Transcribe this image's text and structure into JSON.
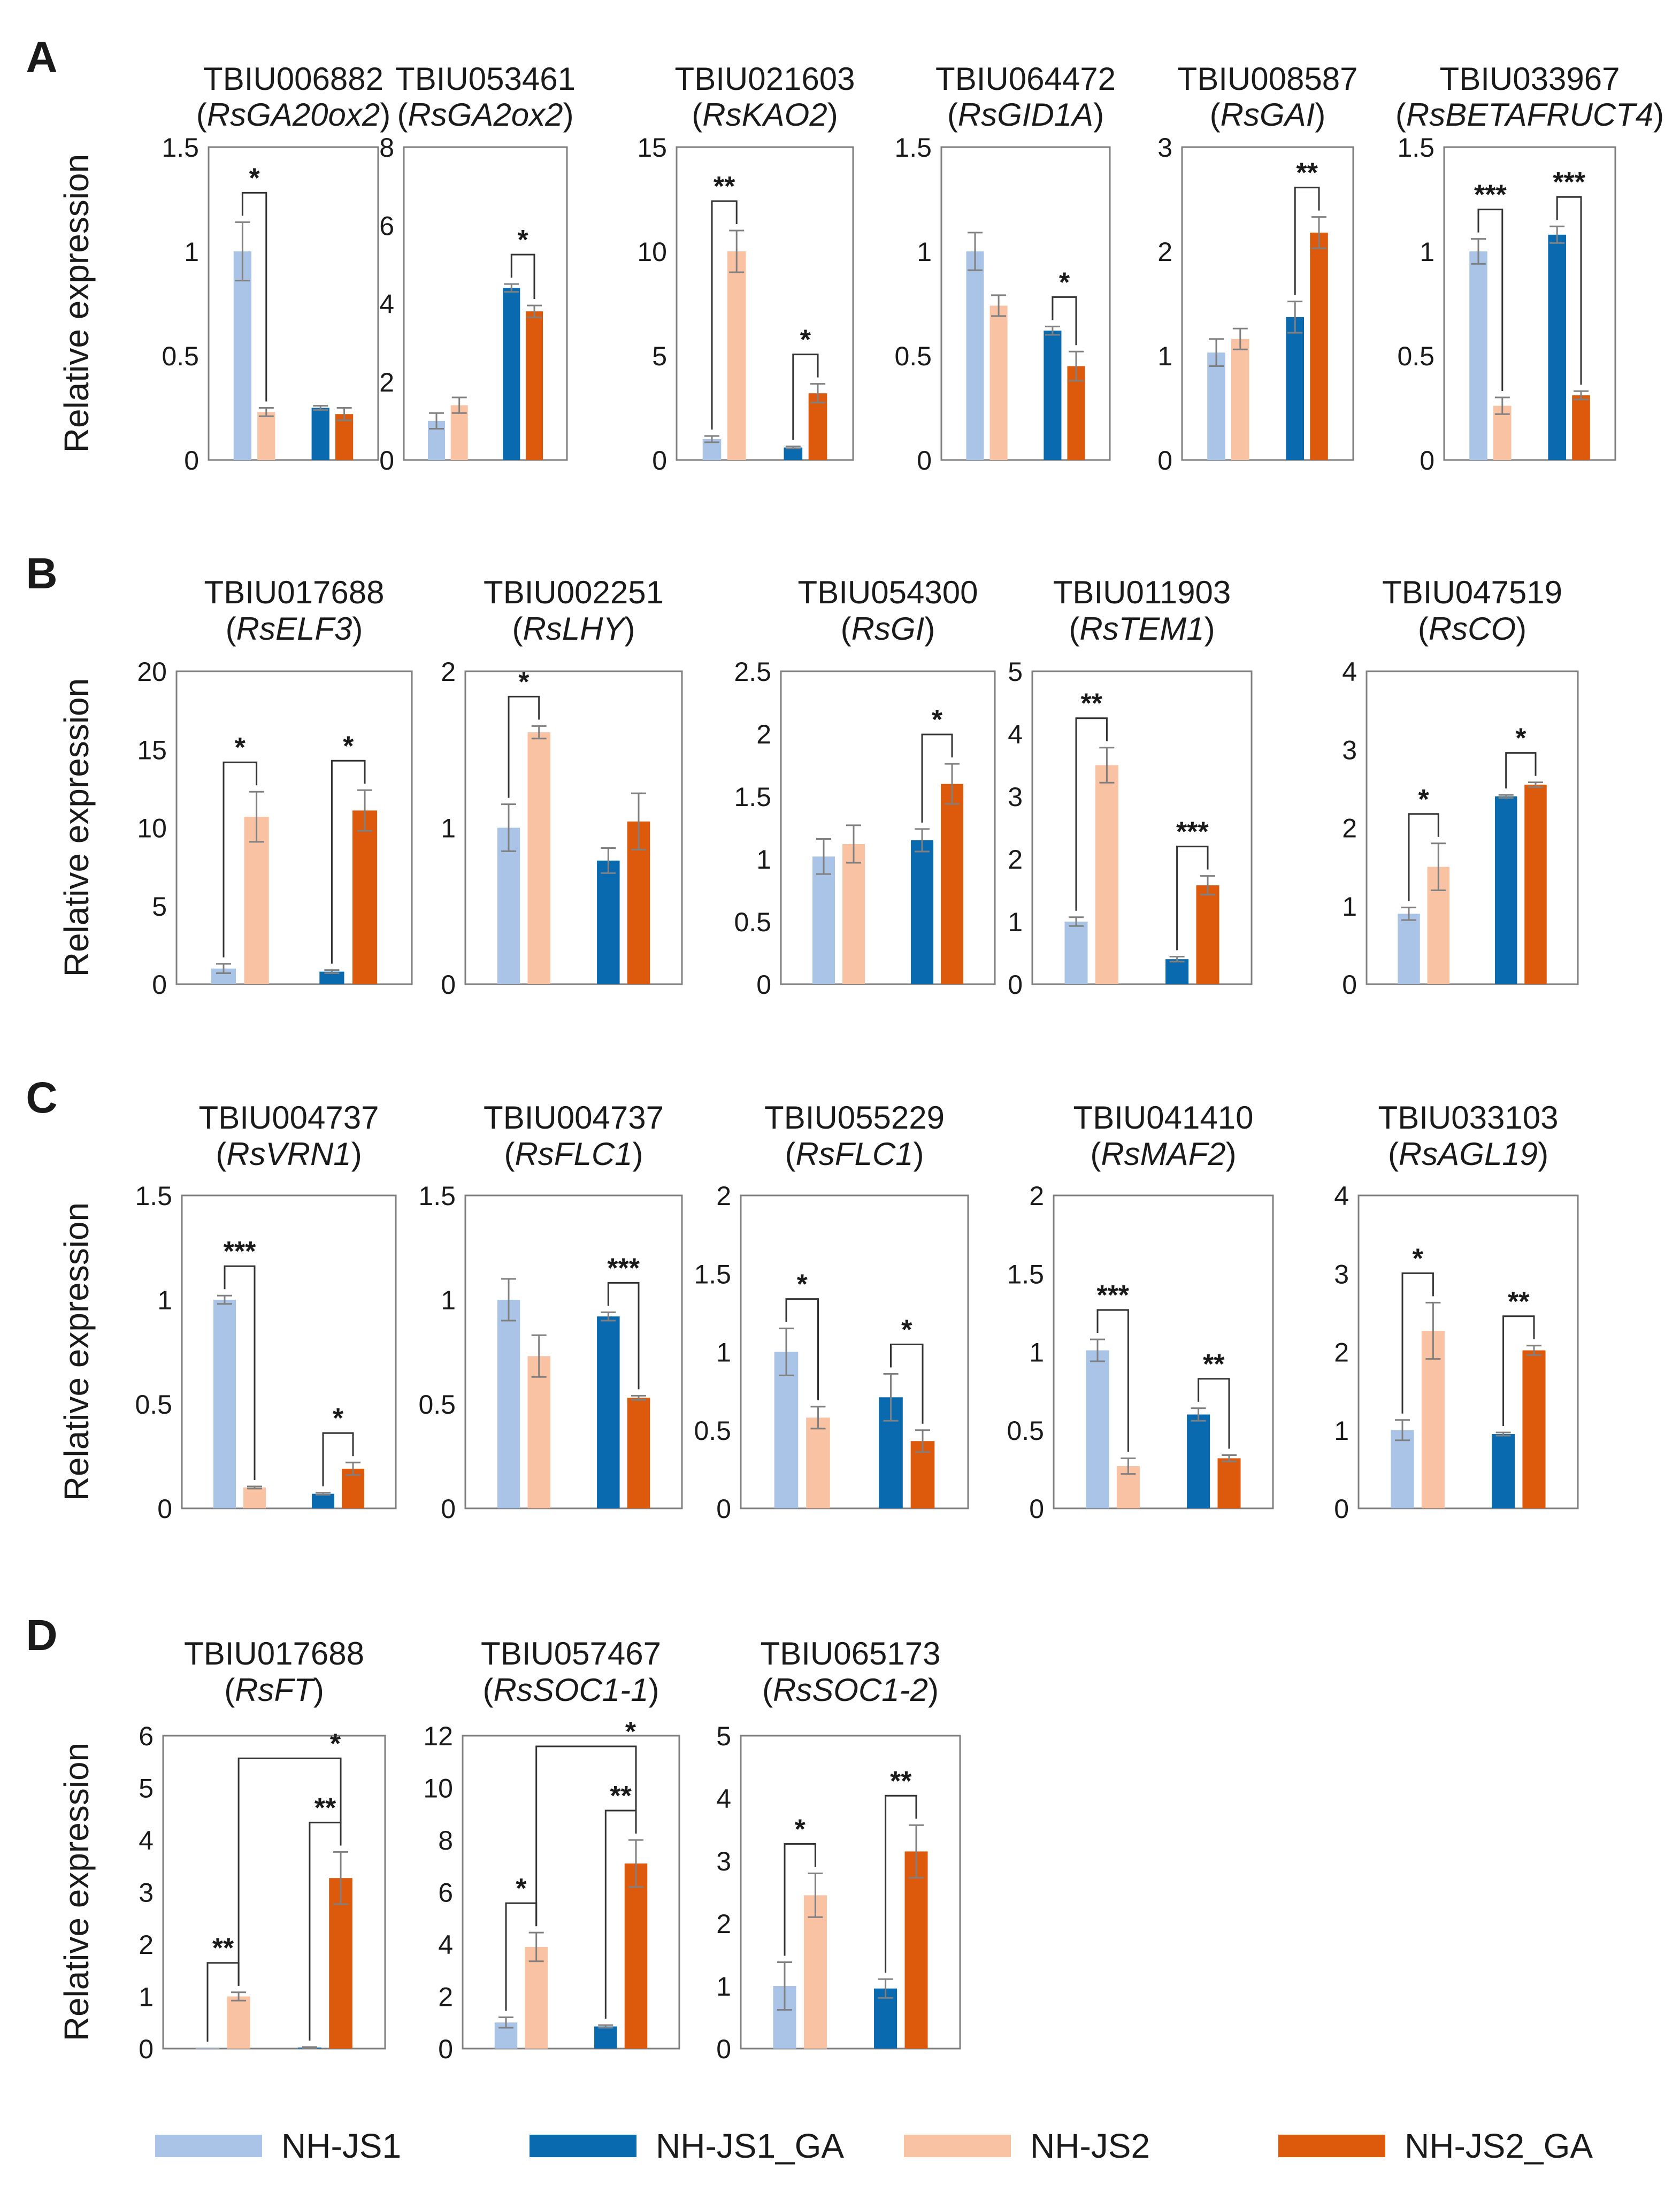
{
  "figure": {
    "y_axis_label": "Relative expression",
    "legend": [
      {
        "label": "NH-JS1",
        "color": "#a9c4e6"
      },
      {
        "label": "NH-JS1_GA",
        "color": "#0a6ab0"
      },
      {
        "label": "NH-JS2",
        "color": "#f9c3a3"
      },
      {
        "label": "NH-JS2_GA",
        "color": "#dd5a0c"
      }
    ],
    "panels": [
      {
        "letter": "A"
      },
      {
        "letter": "B"
      },
      {
        "letter": "C"
      },
      {
        "letter": "D"
      }
    ]
  },
  "chart_data": [
    {
      "panel": "A",
      "type": "bar",
      "title": "TBIU006882",
      "subtitle": "RsGA20ox2",
      "ylim": [
        0,
        1.5
      ],
      "yticks": [
        "0",
        "0.5",
        "1",
        "1.5"
      ],
      "series": [
        {
          "name": "NH-JS1",
          "value": 1.0,
          "error": 0.14
        },
        {
          "name": "NH-JS2",
          "value": 0.23,
          "error": 0.02
        },
        {
          "name": "NH-JS1_GA",
          "value": 0.25,
          "error": 0.01
        },
        {
          "name": "NH-JS2_GA",
          "value": 0.22,
          "error": 0.03
        }
      ],
      "significance": [
        {
          "pair": [
            0,
            1
          ],
          "label": "*"
        }
      ]
    },
    {
      "panel": "A",
      "type": "bar",
      "title": "TBIU053461",
      "subtitle": "RsGA2ox2",
      "ylim": [
        0,
        8
      ],
      "yticks": [
        "0",
        "2",
        "4",
        "6",
        "8"
      ],
      "series": [
        {
          "name": "NH-JS1",
          "value": 1.0,
          "error": 0.2
        },
        {
          "name": "NH-JS2",
          "value": 1.4,
          "error": 0.2
        },
        {
          "name": "NH-JS1_GA",
          "value": 4.4,
          "error": 0.1
        },
        {
          "name": "NH-JS2_GA",
          "value": 3.8,
          "error": 0.15
        }
      ],
      "significance": [
        {
          "pair": [
            2,
            3
          ],
          "label": "*"
        }
      ]
    },
    {
      "panel": "A",
      "type": "bar",
      "title": "TBIU021603",
      "subtitle": "RsKAO2",
      "ylim": [
        0,
        15
      ],
      "yticks": [
        "0",
        "5",
        "10",
        "15"
      ],
      "series": [
        {
          "name": "NH-JS1",
          "value": 1.0,
          "error": 0.15
        },
        {
          "name": "NH-JS2",
          "value": 10.0,
          "error": 1.0
        },
        {
          "name": "NH-JS1_GA",
          "value": 0.6,
          "error": 0.05
        },
        {
          "name": "NH-JS2_GA",
          "value": 3.2,
          "error": 0.45
        }
      ],
      "significance": [
        {
          "pair": [
            0,
            1
          ],
          "label": "**"
        },
        {
          "pair": [
            2,
            3
          ],
          "label": "*"
        }
      ]
    },
    {
      "panel": "A",
      "type": "bar",
      "title": "TBIU064472",
      "subtitle": "RsGID1A",
      "ylim": [
        0,
        1.5
      ],
      "yticks": [
        "0",
        "0.5",
        "1",
        "1.5"
      ],
      "series": [
        {
          "name": "NH-JS1",
          "value": 1.0,
          "error": 0.09
        },
        {
          "name": "NH-JS2",
          "value": 0.74,
          "error": 0.05
        },
        {
          "name": "NH-JS1_GA",
          "value": 0.62,
          "error": 0.02
        },
        {
          "name": "NH-JS2_GA",
          "value": 0.45,
          "error": 0.07
        }
      ],
      "significance": [
        {
          "pair": [
            2,
            3
          ],
          "label": "*"
        }
      ]
    },
    {
      "panel": "A",
      "type": "bar",
      "title": "TBIU008587",
      "subtitle": "RsGAI",
      "ylim": [
        0,
        3
      ],
      "yticks": [
        "0",
        "1",
        "2",
        "3"
      ],
      "series": [
        {
          "name": "NH-JS1",
          "value": 1.03,
          "error": 0.13
        },
        {
          "name": "NH-JS2",
          "value": 1.16,
          "error": 0.1
        },
        {
          "name": "NH-JS1_GA",
          "value": 1.37,
          "error": 0.15
        },
        {
          "name": "NH-JS2_GA",
          "value": 2.18,
          "error": 0.15
        }
      ],
      "significance": [
        {
          "pair": [
            2,
            3
          ],
          "label": "**"
        }
      ]
    },
    {
      "panel": "A",
      "type": "bar",
      "title": "TBIU033967",
      "subtitle": "RsBETAFRUCT4",
      "ylim": [
        0,
        1.5
      ],
      "yticks": [
        "0",
        "0.5",
        "1",
        "1.5"
      ],
      "series": [
        {
          "name": "NH-JS1",
          "value": 1.0,
          "error": 0.06
        },
        {
          "name": "NH-JS2",
          "value": 0.26,
          "error": 0.04
        },
        {
          "name": "NH-JS1_GA",
          "value": 1.08,
          "error": 0.04
        },
        {
          "name": "NH-JS2_GA",
          "value": 0.31,
          "error": 0.02
        }
      ],
      "significance": [
        {
          "pair": [
            0,
            1
          ],
          "label": "***"
        },
        {
          "pair": [
            2,
            3
          ],
          "label": "***"
        }
      ]
    },
    {
      "panel": "B",
      "type": "bar",
      "title": "TBIU017688",
      "subtitle": "RsELF3",
      "ylim": [
        0,
        20
      ],
      "yticks": [
        "0",
        "5",
        "10",
        "15",
        "20"
      ],
      "series": [
        {
          "name": "NH-JS1",
          "value": 1.0,
          "error": 0.3
        },
        {
          "name": "NH-JS2",
          "value": 10.7,
          "error": 1.6
        },
        {
          "name": "NH-JS1_GA",
          "value": 0.8,
          "error": 0.1
        },
        {
          "name": "NH-JS2_GA",
          "value": 11.1,
          "error": 1.3
        }
      ],
      "significance": [
        {
          "pair": [
            0,
            1
          ],
          "label": "*"
        },
        {
          "pair": [
            2,
            3
          ],
          "label": "*"
        }
      ]
    },
    {
      "panel": "B",
      "type": "bar",
      "title": "TBIU002251",
      "subtitle": "RsLHY",
      "ylim": [
        0,
        2
      ],
      "yticks": [
        "0",
        "1",
        "2"
      ],
      "series": [
        {
          "name": "NH-JS1",
          "value": 1.0,
          "error": 0.15
        },
        {
          "name": "NH-JS2",
          "value": 1.61,
          "error": 0.04
        },
        {
          "name": "NH-JS1_GA",
          "value": 0.79,
          "error": 0.08
        },
        {
          "name": "NH-JS2_GA",
          "value": 1.04,
          "error": 0.18
        }
      ],
      "significance": [
        {
          "pair": [
            0,
            1
          ],
          "label": "*"
        }
      ]
    },
    {
      "panel": "B",
      "type": "bar",
      "title": "TBIU054300",
      "subtitle": "RsGI",
      "ylim": [
        0,
        2.5
      ],
      "yticks": [
        "0",
        "0.5",
        "1",
        "1.5",
        "2",
        "2.5"
      ],
      "series": [
        {
          "name": "NH-JS1",
          "value": 1.02,
          "error": 0.14
        },
        {
          "name": "NH-JS2",
          "value": 1.12,
          "error": 0.15
        },
        {
          "name": "NH-JS1_GA",
          "value": 1.15,
          "error": 0.09
        },
        {
          "name": "NH-JS2_GA",
          "value": 1.6,
          "error": 0.16
        }
      ],
      "significance": [
        {
          "pair": [
            2,
            3
          ],
          "label": "*"
        }
      ]
    },
    {
      "panel": "B",
      "type": "bar",
      "title": "TBIU011903",
      "subtitle": "RsTEM1",
      "ylim": [
        0,
        5
      ],
      "yticks": [
        "0",
        "1",
        "2",
        "3",
        "4",
        "5"
      ],
      "series": [
        {
          "name": "NH-JS1",
          "value": 1.0,
          "error": 0.07
        },
        {
          "name": "NH-JS2",
          "value": 3.5,
          "error": 0.28
        },
        {
          "name": "NH-JS1_GA",
          "value": 0.4,
          "error": 0.04
        },
        {
          "name": "NH-JS2_GA",
          "value": 1.58,
          "error": 0.15
        }
      ],
      "significance": [
        {
          "pair": [
            0,
            1
          ],
          "label": "**"
        },
        {
          "pair": [
            2,
            3
          ],
          "label": "***"
        }
      ]
    },
    {
      "panel": "B",
      "type": "bar",
      "title": "TBIU047519",
      "subtitle": "RsCO",
      "ylim": [
        0,
        4
      ],
      "yticks": [
        "0",
        "1",
        "2",
        "3",
        "4"
      ],
      "series": [
        {
          "name": "NH-JS1",
          "value": 0.9,
          "error": 0.08
        },
        {
          "name": "NH-JS2",
          "value": 1.5,
          "error": 0.3
        },
        {
          "name": "NH-JS1_GA",
          "value": 2.4,
          "error": 0.02
        },
        {
          "name": "NH-JS2_GA",
          "value": 2.55,
          "error": 0.03
        }
      ],
      "significance": [
        {
          "pair": [
            0,
            1
          ],
          "label": "*"
        },
        {
          "pair": [
            2,
            3
          ],
          "label": "*"
        }
      ]
    },
    {
      "panel": "C",
      "type": "bar",
      "title": "TBIU004737",
      "subtitle": "RsVRN1",
      "ylim": [
        0,
        1.5
      ],
      "yticks": [
        "0",
        "0.5",
        "1",
        "1.5"
      ],
      "series": [
        {
          "name": "NH-JS1",
          "value": 1.0,
          "error": 0.02
        },
        {
          "name": "NH-JS2",
          "value": 0.1,
          "error": 0.005
        },
        {
          "name": "NH-JS1_GA",
          "value": 0.07,
          "error": 0.005
        },
        {
          "name": "NH-JS2_GA",
          "value": 0.19,
          "error": 0.03
        }
      ],
      "significance": [
        {
          "pair": [
            0,
            1
          ],
          "label": "***"
        },
        {
          "pair": [
            2,
            3
          ],
          "label": "*"
        }
      ]
    },
    {
      "panel": "C",
      "type": "bar",
      "title": "TBIU004737",
      "subtitle": "RsFLC1",
      "ylim": [
        0,
        1.5
      ],
      "yticks": [
        "0",
        "0.5",
        "1",
        "1.5"
      ],
      "series": [
        {
          "name": "NH-JS1",
          "value": 1.0,
          "error": 0.1
        },
        {
          "name": "NH-JS2",
          "value": 0.73,
          "error": 0.1
        },
        {
          "name": "NH-JS1_GA",
          "value": 0.92,
          "error": 0.02
        },
        {
          "name": "NH-JS2_GA",
          "value": 0.53,
          "error": 0.01
        }
      ],
      "significance": [
        {
          "pair": [
            2,
            3
          ],
          "label": "***"
        }
      ]
    },
    {
      "panel": "C",
      "type": "bar",
      "title": "TBIU055229",
      "subtitle": "RsFLC1",
      "ylim": [
        0,
        2
      ],
      "yticks": [
        "0",
        "0.5",
        "1",
        "1.5",
        "2"
      ],
      "series": [
        {
          "name": "NH-JS1",
          "value": 1.0,
          "error": 0.15
        },
        {
          "name": "NH-JS2",
          "value": 0.58,
          "error": 0.07
        },
        {
          "name": "NH-JS1_GA",
          "value": 0.71,
          "error": 0.15
        },
        {
          "name": "NH-JS2_GA",
          "value": 0.43,
          "error": 0.07
        }
      ],
      "significance": [
        {
          "pair": [
            0,
            1
          ],
          "label": "*"
        },
        {
          "pair": [
            2,
            3
          ],
          "label": "*"
        }
      ]
    },
    {
      "panel": "C",
      "type": "bar",
      "title": "TBIU041410",
      "subtitle": "RsMAF2",
      "ylim": [
        0,
        2
      ],
      "yticks": [
        "0",
        "0.5",
        "1",
        "1.5",
        "2"
      ],
      "series": [
        {
          "name": "NH-JS1",
          "value": 1.01,
          "error": 0.07
        },
        {
          "name": "NH-JS2",
          "value": 0.27,
          "error": 0.05
        },
        {
          "name": "NH-JS1_GA",
          "value": 0.6,
          "error": 0.04
        },
        {
          "name": "NH-JS2_GA",
          "value": 0.32,
          "error": 0.02
        }
      ],
      "significance": [
        {
          "pair": [
            0,
            1
          ],
          "label": "***"
        },
        {
          "pair": [
            2,
            3
          ],
          "label": "**"
        }
      ]
    },
    {
      "panel": "C",
      "type": "bar",
      "title": "TBIU033103",
      "subtitle": "RsAGL19",
      "ylim": [
        0,
        4
      ],
      "yticks": [
        "0",
        "1",
        "2",
        "3",
        "4"
      ],
      "series": [
        {
          "name": "NH-JS1",
          "value": 1.0,
          "error": 0.13
        },
        {
          "name": "NH-JS2",
          "value": 2.27,
          "error": 0.36
        },
        {
          "name": "NH-JS1_GA",
          "value": 0.95,
          "error": 0.02
        },
        {
          "name": "NH-JS2_GA",
          "value": 2.02,
          "error": 0.06
        }
      ],
      "significance": [
        {
          "pair": [
            0,
            1
          ],
          "label": "*"
        },
        {
          "pair": [
            2,
            3
          ],
          "label": "**"
        }
      ]
    },
    {
      "panel": "D",
      "type": "bar",
      "title": "TBIU017688",
      "subtitle": "RsFT",
      "ylim": [
        0,
        6
      ],
      "yticks": [
        "0",
        "1",
        "2",
        "3",
        "4",
        "5",
        "6"
      ],
      "series": [
        {
          "name": "NH-JS1",
          "value": 0.01,
          "error": 0.0
        },
        {
          "name": "NH-JS2",
          "value": 1.0,
          "error": 0.08
        },
        {
          "name": "NH-JS1_GA",
          "value": 0.02,
          "error": 0.01
        },
        {
          "name": "NH-JS2_GA",
          "value": 3.27,
          "error": 0.5
        }
      ],
      "significance": [
        {
          "pair": [
            0,
            1
          ],
          "label": "**"
        },
        {
          "pair": [
            2,
            3
          ],
          "label": "**"
        },
        {
          "pair": [
            1,
            3
          ],
          "label": "*"
        }
      ]
    },
    {
      "panel": "D",
      "type": "bar",
      "title": "TBIU057467",
      "subtitle": "RsSOC1-1",
      "ylim": [
        0,
        12
      ],
      "yticks": [
        "0",
        "2",
        "4",
        "6",
        "8",
        "10",
        "12"
      ],
      "series": [
        {
          "name": "NH-JS1",
          "value": 1.0,
          "error": 0.2
        },
        {
          "name": "NH-JS2",
          "value": 3.9,
          "error": 0.55
        },
        {
          "name": "NH-JS1_GA",
          "value": 0.85,
          "error": 0.05
        },
        {
          "name": "NH-JS2_GA",
          "value": 7.1,
          "error": 0.9
        }
      ],
      "significance": [
        {
          "pair": [
            0,
            1
          ],
          "label": "*"
        },
        {
          "pair": [
            2,
            3
          ],
          "label": "**"
        },
        {
          "pair": [
            1,
            3
          ],
          "label": "*"
        }
      ]
    },
    {
      "panel": "D",
      "type": "bar",
      "title": "TBIU065173",
      "subtitle": "RsSOC1-2",
      "ylim": [
        0,
        5
      ],
      "yticks": [
        "0",
        "1",
        "2",
        "3",
        "4",
        "5"
      ],
      "series": [
        {
          "name": "NH-JS1",
          "value": 1.0,
          "error": 0.38
        },
        {
          "name": "NH-JS2",
          "value": 2.45,
          "error": 0.35
        },
        {
          "name": "NH-JS1_GA",
          "value": 0.96,
          "error": 0.15
        },
        {
          "name": "NH-JS2_GA",
          "value": 3.15,
          "error": 0.42
        }
      ],
      "significance": [
        {
          "pair": [
            0,
            1
          ],
          "label": "*"
        },
        {
          "pair": [
            2,
            3
          ],
          "label": "**"
        }
      ]
    }
  ]
}
